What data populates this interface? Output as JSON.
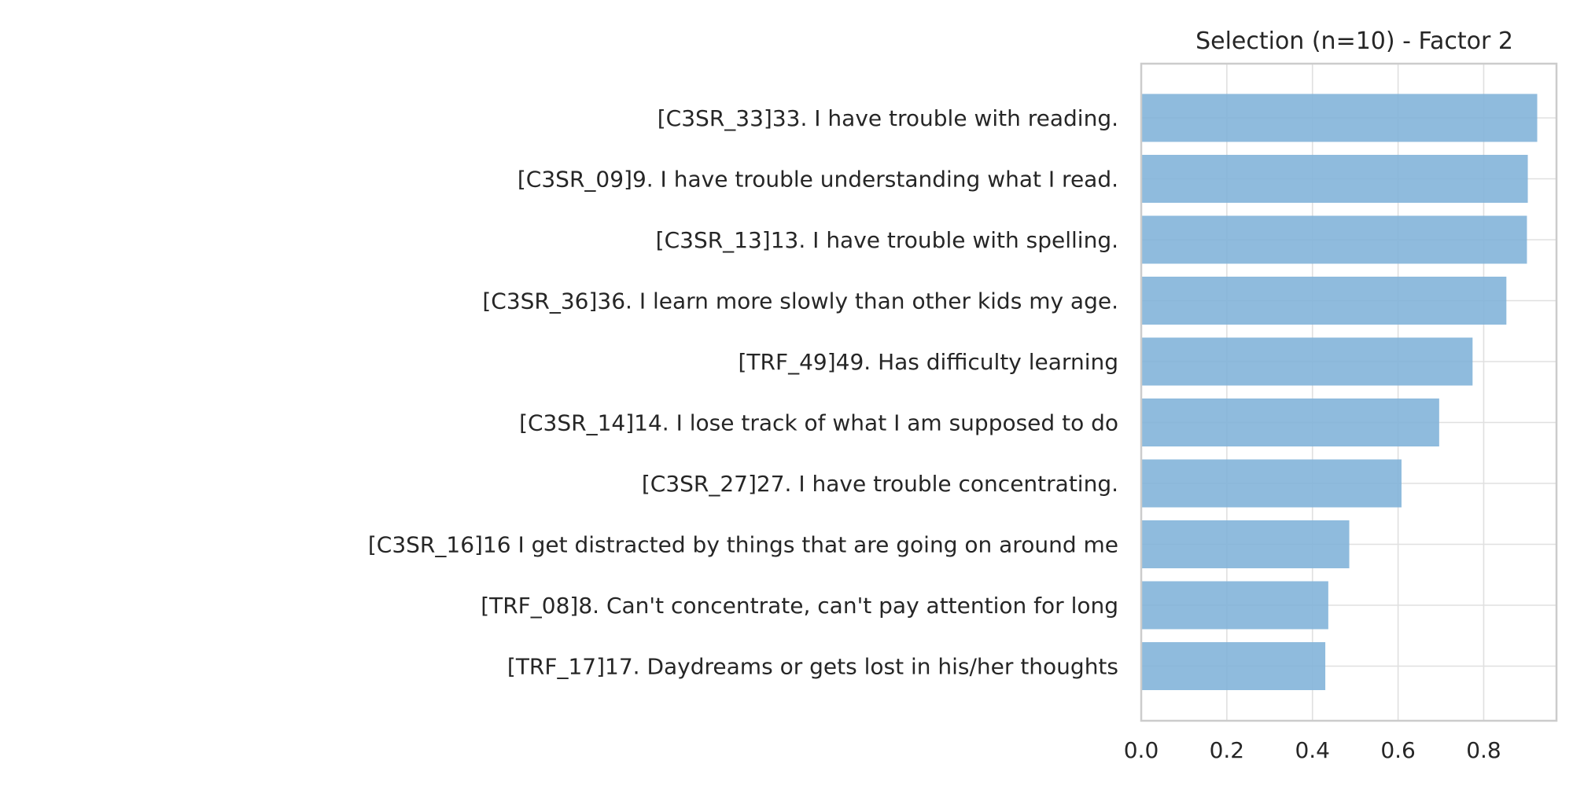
{
  "chart_data": {
    "type": "bar",
    "orientation": "horizontal",
    "title": "Selection (n=10) - Factor 2",
    "xlabel": "",
    "ylabel": "",
    "xlim": [
      0.0,
      0.97
    ],
    "xticks": [
      0.0,
      0.2,
      0.4,
      0.6,
      0.8
    ],
    "xtick_labels": [
      "0.0",
      "0.2",
      "0.4",
      "0.6",
      "0.8"
    ],
    "grid": true,
    "legend": "none",
    "bar_color": "#7fb2d8",
    "categories": [
      "[C3SR_33]33. I have trouble with reading.",
      "[C3SR_09]9. I have trouble understanding what I read.",
      "[C3SR_13]13. I have trouble with spelling.",
      "[C3SR_36]36. I learn more slowly than other kids my age.",
      "[TRF_49]49. Has difficulty learning",
      "[C3SR_14]14. I lose track of what I am supposed to do",
      "[C3SR_27]27. I have trouble concentrating.",
      "[C3SR_16]16 I get distracted by things that are going on around me",
      "[TRF_08]8. Can't concentrate, can't pay attention for long",
      "[TRF_17]17. Daydreams or gets lost in his/her thoughts"
    ],
    "values": [
      0.925,
      0.903,
      0.901,
      0.853,
      0.774,
      0.696,
      0.608,
      0.486,
      0.437,
      0.43
    ]
  }
}
